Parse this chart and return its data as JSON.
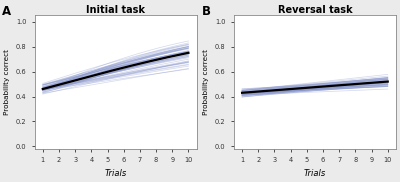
{
  "title_A": "Initial task",
  "title_B": "Reversal task",
  "xlabel": "Trials",
  "ylabel": "Probability correct",
  "label_A": "A",
  "label_B": "B",
  "xlim": [
    0.5,
    10.5
  ],
  "ylim": [
    -0.02,
    1.05
  ],
  "xticks": [
    1,
    2,
    3,
    4,
    5,
    6,
    7,
    8,
    9,
    10
  ],
  "yticks": [
    0.0,
    0.2,
    0.4,
    0.6,
    0.8,
    1.0
  ],
  "n_indiv_lines": 50,
  "line_color_blue": "#8896cc",
  "line_color_mean": "#000000",
  "bg_color": "#ebebeb",
  "panel_bg": "#ffffff",
  "mean_line_A_start": 0.46,
  "mean_line_A_end": 0.75,
  "mean_line_B_start": 0.43,
  "mean_line_B_end": 0.52,
  "seed": 7,
  "indiv_intercept_sd_A": 0.08,
  "indiv_slope_sd_A": 0.2,
  "indiv_intercept_sd_B": 0.07,
  "indiv_slope_sd_B": 0.25
}
